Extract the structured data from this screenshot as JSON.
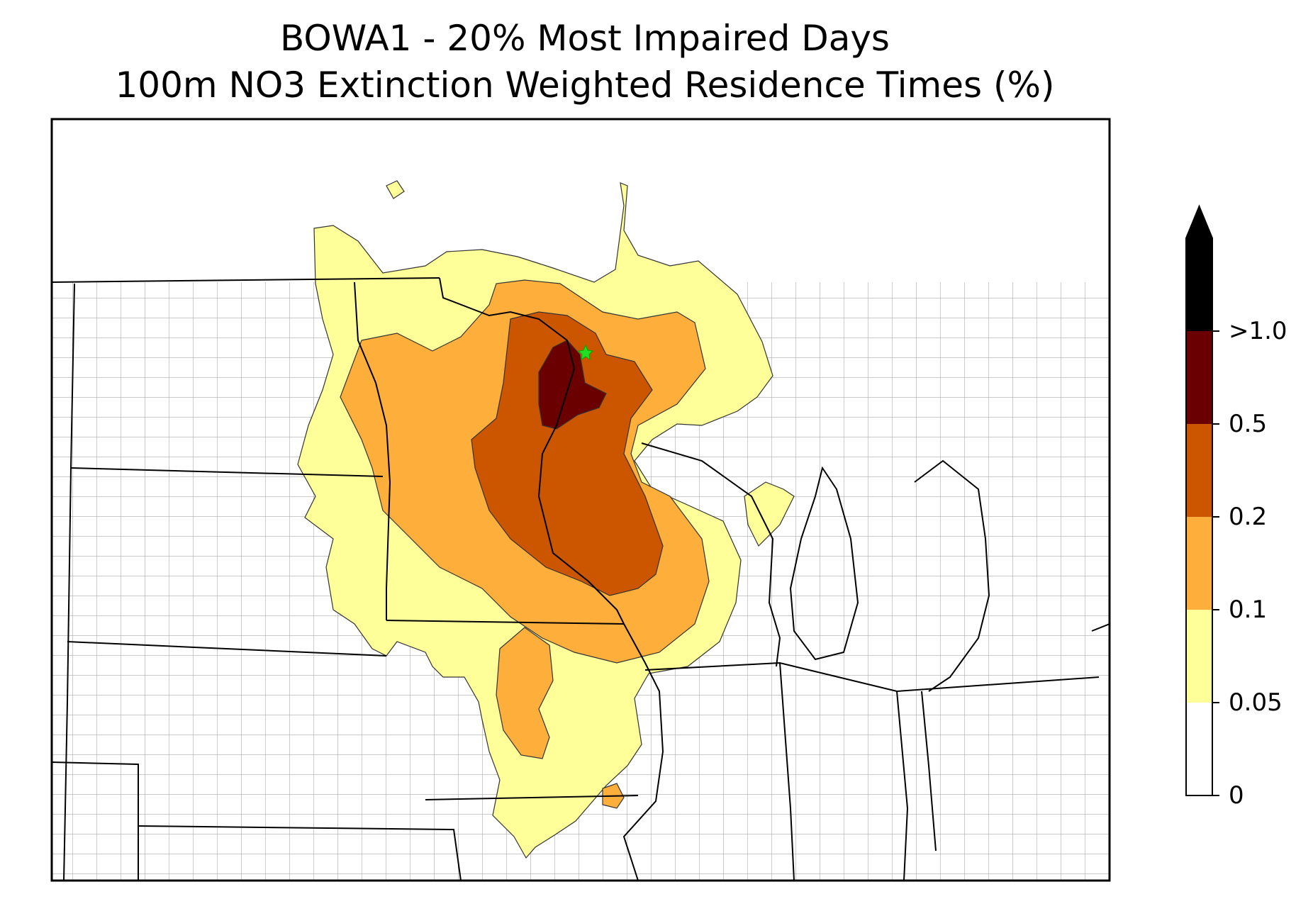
{
  "title_line1": "BOWA1 - 20% Most Impaired Days",
  "title_line2": "100m NO3 Extinction Weighted Residence Times (%)",
  "colorbar": {
    "levels": [
      "0",
      "0.05",
      "0.1",
      "0.2",
      "0.5",
      ">1.0"
    ],
    "colors": [
      "#ffffff",
      "#ffff99",
      "#fdae3b",
      "#cc5500",
      "#6b0000",
      "#000000"
    ],
    "extend": "max"
  },
  "colors": {
    "band_005_01": "#ffff99",
    "band_01_02": "#fdae3b",
    "band_02_05": "#cc5500",
    "band_05_10": "#6b0000",
    "county_lines": "#aaaaaa",
    "state_lines": "#000000",
    "site_marker": "#22dd22"
  },
  "site_marker_icon": "star-icon"
}
